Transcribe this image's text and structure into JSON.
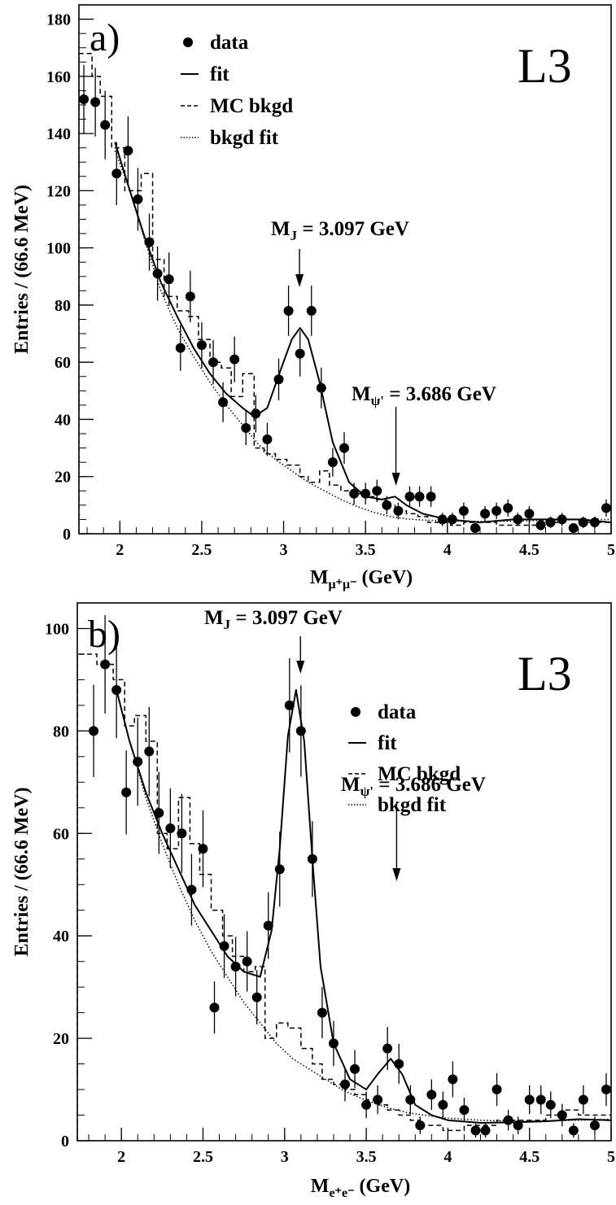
{
  "chart_data": [
    {
      "type": "scatter",
      "panel_label": "a)",
      "experiment_label": "L3",
      "xlabel": "M_{μ+μ-} (GeV)",
      "xlabel_main": "M",
      "xlabel_sub": "μ⁺μ⁻",
      "xlabel_unit": " (GeV)",
      "ylabel": "Entries / (66.6 MeV)",
      "xlim": [
        1.75,
        5.0
      ],
      "ylim": [
        0,
        185
      ],
      "xticks": [
        2,
        2.5,
        3,
        3.5,
        4,
        4.5,
        5
      ],
      "xtick_labels": [
        "2",
        "2.5",
        "3",
        "3.5",
        "4",
        "4.5",
        "5"
      ],
      "yticks": [
        0,
        20,
        40,
        60,
        80,
        100,
        120,
        140,
        160,
        180
      ],
      "ytick_labels": [
        "0",
        "20",
        "40",
        "60",
        "80",
        "100",
        "120",
        "140",
        "160",
        "180"
      ],
      "legend": {
        "placement": "top-left",
        "entries": [
          {
            "marker": "dot",
            "label": "data"
          },
          {
            "marker": "solid",
            "label": "fit"
          },
          {
            "marker": "dashed",
            "label": "MC bkgd"
          },
          {
            "marker": "dotted",
            "label": "bkgd fit"
          }
        ]
      },
      "annotations": [
        {
          "main": "M",
          "sub": "J",
          "rest": " = 3.097 GeV",
          "at_x": 3.097,
          "at_y": 72
        },
        {
          "main": "M",
          "sub": "ψ'",
          "rest": " = 3.686 GeV",
          "at_x": 3.686,
          "at_y": 13
        }
      ],
      "series": [
        {
          "name": "data",
          "style": "points",
          "x": [
            1.78,
            1.85,
            1.91,
            1.98,
            2.05,
            2.11,
            2.18,
            2.23,
            2.3,
            2.37,
            2.43,
            2.5,
            2.57,
            2.63,
            2.7,
            2.77,
            2.83,
            2.9,
            2.97,
            3.03,
            3.1,
            3.17,
            3.23,
            3.3,
            3.37,
            3.43,
            3.5,
            3.57,
            3.63,
            3.7,
            3.77,
            3.83,
            3.9,
            3.97,
            4.03,
            4.1,
            4.17,
            4.23,
            4.3,
            4.37,
            4.43,
            4.5,
            4.57,
            4.63,
            4.7,
            4.77,
            4.83,
            4.9,
            4.97
          ],
          "y": [
            152,
            151,
            143,
            126,
            134,
            117,
            102,
            91,
            89,
            65,
            83,
            66,
            60,
            46,
            61,
            37,
            42,
            33,
            54,
            78,
            63,
            78,
            51,
            25,
            30,
            14,
            14,
            15,
            10,
            8,
            13,
            13,
            13,
            5,
            5,
            8,
            2,
            7,
            8,
            9,
            5,
            7,
            3,
            4,
            5,
            2,
            4,
            4,
            9
          ],
          "err": [
            12,
            12,
            12,
            11,
            12,
            11,
            10,
            9.5,
            9.4,
            8,
            9,
            8,
            7.7,
            7,
            8,
            6,
            6.5,
            5.8,
            7.3,
            8.8,
            8,
            8.8,
            7.1,
            5,
            5.5,
            3.8,
            3.8,
            3.9,
            3.2,
            2.9,
            3.6,
            3.6,
            3.6,
            2.3,
            2.3,
            2.9,
            1.5,
            2.7,
            2.9,
            3,
            2.3,
            2.7,
            1.8,
            2,
            2.3,
            1.5,
            2,
            2,
            3
          ]
        },
        {
          "name": "fit",
          "style": "solid",
          "x": [
            1.97,
            2.05,
            2.15,
            2.25,
            2.35,
            2.45,
            2.55,
            2.65,
            2.75,
            2.82,
            2.9,
            2.98,
            3.05,
            3.1,
            3.15,
            3.22,
            3.3,
            3.4,
            3.5,
            3.6,
            3.68,
            3.75,
            3.85,
            4.0,
            4.2,
            4.4,
            4.6,
            4.8,
            5.0
          ],
          "y": [
            137,
            122,
            104,
            88,
            76,
            65,
            56,
            49,
            44,
            41,
            44,
            57,
            68,
            72,
            68,
            53,
            32,
            18,
            13,
            12,
            13,
            10,
            7,
            5,
            4,
            5,
            5,
            5,
            4
          ]
        },
        {
          "name": "bkgd fit",
          "style": "dotted",
          "x": [
            1.97,
            2.05,
            2.15,
            2.25,
            2.35,
            2.45,
            2.55,
            2.65,
            2.75,
            2.85,
            2.95,
            3.05,
            3.15,
            3.25,
            3.35,
            3.45,
            3.55,
            3.65,
            3.75,
            3.85,
            4.0,
            4.2,
            4.4,
            4.6,
            4.8,
            5.0
          ],
          "y": [
            134,
            122,
            103,
            85,
            72,
            62,
            53,
            45,
            38,
            31,
            26,
            22,
            18,
            15,
            12,
            9.5,
            7.5,
            6,
            5.2,
            4.8,
            4.5,
            4.3,
            4.4,
            4.7,
            4.9,
            5
          ]
        },
        {
          "name": "MC bkgd",
          "style": "dashed-step",
          "edges": [
            1.75,
            1.83,
            1.88,
            1.95,
            2.03,
            2.13,
            2.2,
            2.27,
            2.35,
            2.42,
            2.48,
            2.55,
            2.62,
            2.68,
            2.75,
            2.82,
            2.88,
            2.95,
            3.02,
            3.1,
            3.15,
            3.22,
            3.28,
            3.35,
            3.42,
            3.48,
            3.55,
            3.62,
            3.68,
            3.75,
            3.82,
            3.88,
            3.95,
            4.02,
            4.1,
            4.3,
            4.5,
            4.6,
            4.7,
            4.8,
            4.9,
            5.0
          ],
          "values": [
            168,
            160,
            153,
            135,
            120,
            126,
            96,
            83,
            78,
            76,
            68,
            60,
            58,
            48,
            56,
            30,
            28,
            26,
            24,
            20,
            18,
            22,
            17,
            15,
            14,
            13,
            12,
            10,
            8,
            7,
            6,
            4,
            4,
            3,
            4,
            3,
            3,
            4,
            5,
            4,
            4
          ]
        }
      ]
    },
    {
      "type": "scatter",
      "panel_label": "b)",
      "experiment_label": "L3",
      "xlabel": "M_{e+e-} (GeV)",
      "xlabel_main": "M",
      "xlabel_sub": "e⁺e⁻",
      "xlabel_unit": " (GeV)",
      "ylabel": "Entries / (66.6 MeV)",
      "xlim": [
        1.73,
        5.0
      ],
      "ylim": [
        0,
        105
      ],
      "xticks": [
        2,
        2.5,
        3,
        3.5,
        4,
        4.5,
        5
      ],
      "xtick_labels": [
        "2",
        "2.5",
        "3",
        "3.5",
        "4",
        "4.5",
        "5"
      ],
      "yticks": [
        0,
        20,
        40,
        60,
        80,
        100
      ],
      "ytick_labels": [
        "0",
        "20",
        "40",
        "60",
        "80",
        "100"
      ],
      "legend": {
        "placement": "top-right",
        "entries": [
          {
            "marker": "dot",
            "label": "data"
          },
          {
            "marker": "solid",
            "label": "fit"
          },
          {
            "marker": "dashed",
            "label": "MC bkgd"
          },
          {
            "marker": "dotted",
            "label": "bkgd fit"
          }
        ]
      },
      "annotations": [
        {
          "main": "M",
          "sub": "J",
          "rest": " = 3.097 GeV",
          "at_x": 3.097,
          "at_y": 88
        },
        {
          "main": "M",
          "sub": "ψ'",
          "rest": " = 3.686 GeV",
          "at_x": 3.686,
          "at_y": 17
        }
      ],
      "series": [
        {
          "name": "data",
          "style": "points",
          "x": [
            1.83,
            1.9,
            1.97,
            2.03,
            2.1,
            2.17,
            2.23,
            2.3,
            2.37,
            2.43,
            2.5,
            2.57,
            2.63,
            2.7,
            2.77,
            2.83,
            2.9,
            2.97,
            3.03,
            3.1,
            3.17,
            3.23,
            3.3,
            3.37,
            3.43,
            3.5,
            3.57,
            3.63,
            3.7,
            3.77,
            3.83,
            3.9,
            3.97,
            4.03,
            4.1,
            4.17,
            4.23,
            4.3,
            4.37,
            4.43,
            4.5,
            4.57,
            4.63,
            4.7,
            4.77,
            4.83,
            4.9,
            4.97
          ],
          "y": [
            80,
            93,
            88,
            68,
            74,
            76,
            64,
            61,
            60,
            49,
            57,
            26,
            38,
            34,
            35,
            28,
            42,
            53,
            85,
            80,
            55,
            25,
            19,
            11,
            14,
            7,
            8,
            18,
            15,
            8,
            3,
            9,
            7,
            12,
            6,
            2,
            2,
            10,
            4,
            3,
            8,
            8,
            7,
            5,
            2,
            8,
            3,
            10
          ],
          "err": [
            9,
            9.6,
            9.4,
            8.2,
            8.6,
            8.7,
            8,
            7.8,
            7.7,
            7,
            7.5,
            5.1,
            6.2,
            5.8,
            5.9,
            5.3,
            6.5,
            7.3,
            9.2,
            8.9,
            7.4,
            5,
            4.4,
            3.3,
            3.7,
            2.6,
            2.8,
            4.2,
            3.9,
            2.8,
            1.7,
            3,
            2.6,
            3.5,
            2.4,
            1.4,
            1.4,
            3.2,
            2,
            1.7,
            2.8,
            2.8,
            2.6,
            2.2,
            1.4,
            2.8,
            1.7,
            3.2
          ]
        },
        {
          "name": "fit",
          "style": "solid",
          "x": [
            1.97,
            2.05,
            2.15,
            2.25,
            2.35,
            2.45,
            2.55,
            2.65,
            2.75,
            2.85,
            2.92,
            2.97,
            3.02,
            3.07,
            3.12,
            3.17,
            3.22,
            3.3,
            3.4,
            3.5,
            3.57,
            3.65,
            3.72,
            3.8,
            3.9,
            4.0,
            4.2,
            4.4,
            4.6,
            4.8,
            5.0
          ],
          "y": [
            88,
            78,
            68,
            60,
            53,
            46,
            41,
            36,
            33,
            32,
            41,
            57,
            79,
            88,
            78,
            55,
            34,
            19,
            12,
            10,
            13,
            16,
            13,
            7,
            5,
            4,
            3.5,
            3.6,
            3.8,
            4.2,
            4
          ]
        },
        {
          "name": "bkgd fit",
          "style": "dotted",
          "x": [
            1.97,
            2.05,
            2.15,
            2.25,
            2.35,
            2.45,
            2.55,
            2.65,
            2.75,
            2.85,
            2.95,
            3.05,
            3.15,
            3.25,
            3.35,
            3.45,
            3.55,
            3.65,
            3.75,
            3.85,
            4.0,
            4.2,
            4.4,
            4.6,
            4.8,
            5.0
          ],
          "y": [
            88,
            78,
            67,
            58,
            50,
            43,
            37,
            32,
            27,
            23,
            19,
            16,
            14,
            12,
            10,
            8.5,
            7.3,
            6.3,
            5.5,
            5,
            4.4,
            4,
            3.8,
            3.9,
            4,
            4.2
          ]
        },
        {
          "name": "MC bkgd",
          "style": "dashed-step",
          "edges": [
            1.73,
            1.85,
            1.95,
            2.02,
            2.08,
            2.15,
            2.22,
            2.28,
            2.35,
            2.42,
            2.48,
            2.55,
            2.62,
            2.68,
            2.75,
            2.82,
            2.88,
            2.95,
            3.02,
            3.1,
            3.17,
            3.23,
            3.3,
            3.37,
            3.43,
            3.5,
            3.57,
            3.63,
            3.7,
            3.77,
            3.83,
            3.9,
            3.97,
            4.03,
            4.1,
            4.17,
            4.3,
            4.5,
            4.6,
            4.7,
            4.8,
            5.0
          ],
          "values": [
            95,
            93,
            90,
            81,
            83,
            78,
            60,
            57,
            67,
            58,
            52,
            45,
            40,
            36,
            33,
            34,
            20,
            23,
            22,
            18,
            15,
            12,
            11,
            10,
            9,
            8,
            7,
            6,
            5,
            4,
            3,
            3,
            2,
            2,
            3,
            3,
            4,
            4,
            5,
            6,
            5
          ]
        }
      ]
    }
  ]
}
